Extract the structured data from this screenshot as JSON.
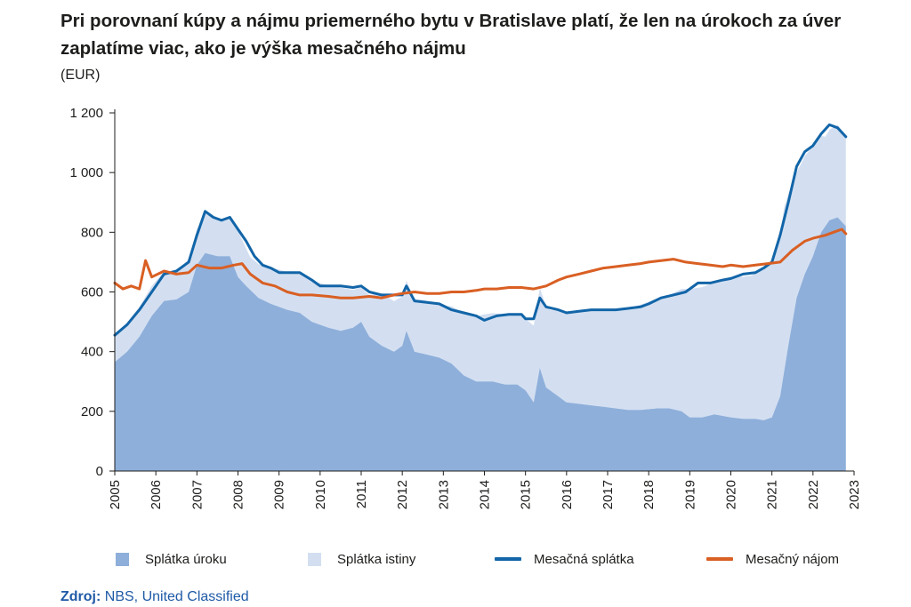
{
  "title": "Pri porovnaní kúpy a nájmu priemerného bytu v Bratislave platí, že len na úrokoch za úver zaplatíme viac, ako je výška mesačného nájmu",
  "unit": "(EUR)",
  "source": {
    "label": "Zdroj:",
    "text": "NBS, United Classified"
  },
  "colors": {
    "interest": "#8eafda",
    "principal": "#d3dff1",
    "payment": "#1265a8",
    "rent": "#d95f23"
  },
  "chart_data": {
    "type": "area",
    "x_axis": {
      "ticks": [
        "2005",
        "2006",
        "2007",
        "2008",
        "2009",
        "2010",
        "2011",
        "2012",
        "2013",
        "2014",
        "2015",
        "2016",
        "2017",
        "2018",
        "2019",
        "2020",
        "2021",
        "2022",
        "2023"
      ],
      "range": [
        2005,
        2023
      ]
    },
    "y_axis": {
      "ticks": [
        "0",
        "200",
        "400",
        "600",
        "800",
        "1 000",
        "1 200"
      ],
      "range": [
        0,
        1200
      ]
    },
    "grid": false,
    "legend_position": "bottom",
    "series": [
      {
        "name": "Splátka úroku",
        "kind": "area",
        "color": "#8eafda",
        "points": [
          [
            2005.0,
            365
          ],
          [
            2005.3,
            400
          ],
          [
            2005.6,
            450
          ],
          [
            2005.9,
            520
          ],
          [
            2006.2,
            570
          ],
          [
            2006.5,
            575
          ],
          [
            2006.8,
            600
          ],
          [
            2007.0,
            690
          ],
          [
            2007.2,
            730
          ],
          [
            2007.5,
            720
          ],
          [
            2007.8,
            720
          ],
          [
            2008.0,
            650
          ],
          [
            2008.2,
            620
          ],
          [
            2008.5,
            580
          ],
          [
            2008.8,
            560
          ],
          [
            2009.2,
            540
          ],
          [
            2009.5,
            530
          ],
          [
            2009.8,
            500
          ],
          [
            2010.2,
            480
          ],
          [
            2010.5,
            470
          ],
          [
            2010.8,
            480
          ],
          [
            2011.0,
            500
          ],
          [
            2011.2,
            450
          ],
          [
            2011.5,
            420
          ],
          [
            2011.8,
            400
          ],
          [
            2012.0,
            420
          ],
          [
            2012.1,
            470
          ],
          [
            2012.3,
            400
          ],
          [
            2012.6,
            390
          ],
          [
            2012.9,
            380
          ],
          [
            2013.2,
            360
          ],
          [
            2013.5,
            320
          ],
          [
            2013.8,
            300
          ],
          [
            2014.2,
            300
          ],
          [
            2014.5,
            290
          ],
          [
            2014.8,
            290
          ],
          [
            2015.0,
            270
          ],
          [
            2015.2,
            230
          ],
          [
            2015.35,
            345
          ],
          [
            2015.5,
            280
          ],
          [
            2015.8,
            250
          ],
          [
            2016.0,
            230
          ],
          [
            2016.3,
            225
          ],
          [
            2016.6,
            220
          ],
          [
            2016.9,
            215
          ],
          [
            2017.2,
            210
          ],
          [
            2017.5,
            205
          ],
          [
            2017.8,
            205
          ],
          [
            2018.2,
            210
          ],
          [
            2018.5,
            210
          ],
          [
            2018.8,
            200
          ],
          [
            2019.0,
            180
          ],
          [
            2019.3,
            180
          ],
          [
            2019.6,
            190
          ],
          [
            2020.0,
            180
          ],
          [
            2020.3,
            175
          ],
          [
            2020.6,
            175
          ],
          [
            2020.8,
            170
          ],
          [
            2021.0,
            180
          ],
          [
            2021.2,
            250
          ],
          [
            2021.4,
            420
          ],
          [
            2021.6,
            580
          ],
          [
            2021.8,
            660
          ],
          [
            2022.0,
            720
          ],
          [
            2022.2,
            800
          ],
          [
            2022.4,
            840
          ],
          [
            2022.6,
            850
          ],
          [
            2022.8,
            820
          ]
        ]
      },
      {
        "name": "Splátka istiny",
        "kind": "area",
        "color": "#d3dff1",
        "points": [
          [
            2005.0,
            90
          ],
          [
            2005.5,
            100
          ],
          [
            2006.0,
            100
          ],
          [
            2006.5,
            95
          ],
          [
            2007.0,
            120
          ],
          [
            2007.2,
            140
          ],
          [
            2007.5,
            120
          ],
          [
            2007.8,
            125
          ],
          [
            2008.0,
            155
          ],
          [
            2008.3,
            110
          ],
          [
            2008.6,
            115
          ],
          [
            2009.0,
            125
          ],
          [
            2009.5,
            130
          ],
          [
            2010.0,
            140
          ],
          [
            2010.5,
            145
          ],
          [
            2011.0,
            115
          ],
          [
            2011.5,
            175
          ],
          [
            2012.0,
            165
          ],
          [
            2012.5,
            180
          ],
          [
            2013.0,
            180
          ],
          [
            2013.5,
            210
          ],
          [
            2014.0,
            225
          ],
          [
            2014.5,
            235
          ],
          [
            2015.0,
            240
          ],
          [
            2015.35,
            270
          ],
          [
            2015.6,
            270
          ],
          [
            2016.0,
            305
          ],
          [
            2016.5,
            315
          ],
          [
            2017.0,
            330
          ],
          [
            2017.5,
            340
          ],
          [
            2018.0,
            360
          ],
          [
            2018.5,
            380
          ],
          [
            2019.0,
            430
          ],
          [
            2019.5,
            440
          ],
          [
            2020.0,
            470
          ],
          [
            2020.5,
            480
          ],
          [
            2021.0,
            520
          ],
          [
            2021.3,
            550
          ],
          [
            2021.6,
            420
          ],
          [
            2022.0,
            370
          ],
          [
            2022.3,
            300
          ],
          [
            2022.6,
            310
          ],
          [
            2022.8,
            300
          ]
        ]
      },
      {
        "name": "Mesačná splátka",
        "kind": "line",
        "color": "#1265a8",
        "points": [
          [
            2005.0,
            455
          ],
          [
            2005.3,
            490
          ],
          [
            2005.6,
            540
          ],
          [
            2005.9,
            600
          ],
          [
            2006.2,
            660
          ],
          [
            2006.5,
            670
          ],
          [
            2006.8,
            700
          ],
          [
            2007.0,
            790
          ],
          [
            2007.2,
            870
          ],
          [
            2007.4,
            850
          ],
          [
            2007.6,
            840
          ],
          [
            2007.8,
            850
          ],
          [
            2008.0,
            810
          ],
          [
            2008.2,
            770
          ],
          [
            2008.4,
            720
          ],
          [
            2008.6,
            690
          ],
          [
            2008.8,
            680
          ],
          [
            2009.0,
            665
          ],
          [
            2009.5,
            665
          ],
          [
            2009.8,
            640
          ],
          [
            2010.0,
            620
          ],
          [
            2010.5,
            620
          ],
          [
            2010.8,
            615
          ],
          [
            2011.0,
            620
          ],
          [
            2011.2,
            600
          ],
          [
            2011.5,
            590
          ],
          [
            2011.8,
            590
          ],
          [
            2012.0,
            590
          ],
          [
            2012.1,
            620
          ],
          [
            2012.3,
            570
          ],
          [
            2012.6,
            565
          ],
          [
            2012.9,
            560
          ],
          [
            2013.2,
            540
          ],
          [
            2013.5,
            530
          ],
          [
            2013.8,
            520
          ],
          [
            2014.0,
            505
          ],
          [
            2014.3,
            520
          ],
          [
            2014.6,
            525
          ],
          [
            2014.9,
            525
          ],
          [
            2015.0,
            510
          ],
          [
            2015.2,
            510
          ],
          [
            2015.35,
            580
          ],
          [
            2015.5,
            550
          ],
          [
            2015.8,
            540
          ],
          [
            2016.0,
            530
          ],
          [
            2016.3,
            535
          ],
          [
            2016.6,
            540
          ],
          [
            2016.9,
            540
          ],
          [
            2017.2,
            540
          ],
          [
            2017.5,
            545
          ],
          [
            2017.8,
            550
          ],
          [
            2018.0,
            560
          ],
          [
            2018.3,
            580
          ],
          [
            2018.6,
            590
          ],
          [
            2018.9,
            600
          ],
          [
            2019.2,
            630
          ],
          [
            2019.5,
            630
          ],
          [
            2019.8,
            640
          ],
          [
            2020.0,
            645
          ],
          [
            2020.3,
            660
          ],
          [
            2020.6,
            665
          ],
          [
            2020.8,
            680
          ],
          [
            2021.0,
            700
          ],
          [
            2021.2,
            790
          ],
          [
            2021.4,
            900
          ],
          [
            2021.6,
            1020
          ],
          [
            2021.8,
            1070
          ],
          [
            2022.0,
            1090
          ],
          [
            2022.2,
            1130
          ],
          [
            2022.4,
            1160
          ],
          [
            2022.6,
            1150
          ],
          [
            2022.8,
            1120
          ]
        ]
      },
      {
        "name": "Mesačný nájom",
        "kind": "line",
        "color": "#d95f23",
        "points": [
          [
            2005.0,
            630
          ],
          [
            2005.2,
            610
          ],
          [
            2005.4,
            620
          ],
          [
            2005.6,
            610
          ],
          [
            2005.75,
            705
          ],
          [
            2005.9,
            650
          ],
          [
            2006.2,
            670
          ],
          [
            2006.5,
            660
          ],
          [
            2006.8,
            665
          ],
          [
            2007.0,
            690
          ],
          [
            2007.3,
            680
          ],
          [
            2007.6,
            680
          ],
          [
            2007.9,
            690
          ],
          [
            2008.1,
            695
          ],
          [
            2008.3,
            660
          ],
          [
            2008.6,
            630
          ],
          [
            2008.9,
            620
          ],
          [
            2009.2,
            600
          ],
          [
            2009.5,
            590
          ],
          [
            2009.8,
            590
          ],
          [
            2010.2,
            585
          ],
          [
            2010.5,
            580
          ],
          [
            2010.8,
            580
          ],
          [
            2011.2,
            585
          ],
          [
            2011.5,
            580
          ],
          [
            2011.8,
            590
          ],
          [
            2012.0,
            595
          ],
          [
            2012.3,
            600
          ],
          [
            2012.6,
            595
          ],
          [
            2012.9,
            595
          ],
          [
            2013.2,
            600
          ],
          [
            2013.5,
            600
          ],
          [
            2013.8,
            605
          ],
          [
            2014.0,
            610
          ],
          [
            2014.3,
            610
          ],
          [
            2014.6,
            615
          ],
          [
            2014.9,
            615
          ],
          [
            2015.2,
            610
          ],
          [
            2015.5,
            620
          ],
          [
            2015.8,
            640
          ],
          [
            2016.0,
            650
          ],
          [
            2016.3,
            660
          ],
          [
            2016.6,
            670
          ],
          [
            2016.9,
            680
          ],
          [
            2017.2,
            685
          ],
          [
            2017.5,
            690
          ],
          [
            2017.8,
            695
          ],
          [
            2018.0,
            700
          ],
          [
            2018.3,
            705
          ],
          [
            2018.6,
            710
          ],
          [
            2018.9,
            700
          ],
          [
            2019.2,
            695
          ],
          [
            2019.5,
            690
          ],
          [
            2019.8,
            685
          ],
          [
            2020.0,
            690
          ],
          [
            2020.3,
            685
          ],
          [
            2020.6,
            690
          ],
          [
            2020.9,
            695
          ],
          [
            2021.2,
            700
          ],
          [
            2021.5,
            740
          ],
          [
            2021.8,
            770
          ],
          [
            2022.0,
            780
          ],
          [
            2022.3,
            790
          ],
          [
            2022.5,
            800
          ],
          [
            2022.7,
            810
          ],
          [
            2022.8,
            795
          ]
        ]
      }
    ]
  }
}
